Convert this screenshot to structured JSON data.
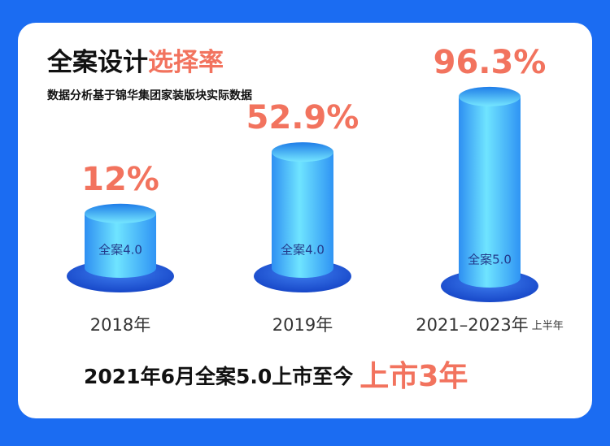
{
  "chart_data": {
    "type": "bar",
    "title_parts": [
      "全案设计",
      "选择率"
    ],
    "subtitle": "数据分析基于锦华集团家装版块实际数据",
    "categories": [
      "2018年",
      "2019年",
      "2021–2023年"
    ],
    "category_notes": [
      null,
      null,
      "上半年"
    ],
    "values": [
      12,
      52.9,
      96.3
    ],
    "value_labels": [
      "12%",
      "52.9%",
      "96.3%"
    ],
    "bar_labels": [
      "全案4.0",
      "全案4.0",
      "全案5.0"
    ],
    "color": "#3fb8ff",
    "label_color": "#f2735e",
    "footer_parts": [
      "2021年6月全案5.0上市至今",
      "上市3年"
    ]
  }
}
